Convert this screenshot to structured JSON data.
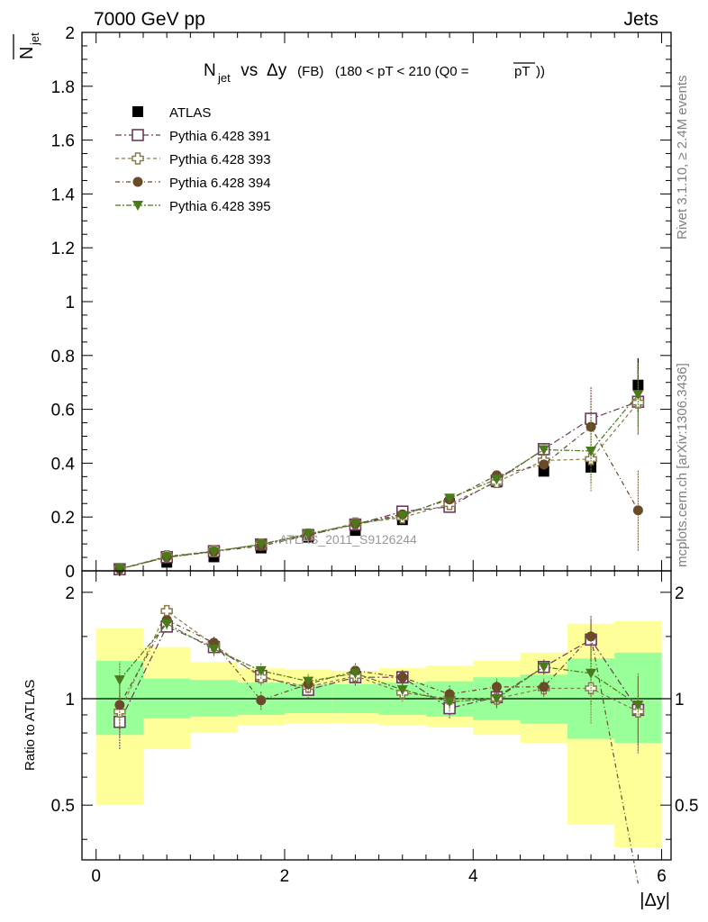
{
  "header": {
    "left": "7000 GeV pp",
    "right": "Jets"
  },
  "side_text": {
    "rivet": "Rivet 3.1.10, ≥ 2.4M events",
    "mcplots": "mcplots.cern.ch [arXiv:1306.3436]"
  },
  "watermark": "ATLAS_2011_S9126244",
  "chart_data": {
    "type": "scatter",
    "title": {
      "main": "N",
      "main_sub": "jet",
      "vs": " vs ",
      "delta": "Δy",
      "fb": " (FB) ",
      "range": "(180 < pT < 210 (Q0 =",
      "ptbar": "pT",
      "close": "))"
    },
    "ylabel": {
      "main": "N",
      "sub": "jet"
    },
    "xlabel": "|Δy|",
    "ratio_ylabel": "Ratio to ATLAS",
    "xlim": [
      -0.15,
      6.1
    ],
    "ylim": [
      0,
      2
    ],
    "ratio_ylim": [
      0.35,
      2.3
    ],
    "x_ticks": [
      "0",
      "2",
      "4",
      "6"
    ],
    "y_ticks": [
      "0",
      "0.2",
      "0.4",
      "0.6",
      "0.8",
      "1",
      "1.2",
      "1.4",
      "1.6",
      "1.8",
      "2"
    ],
    "ratio_ticks": [
      "0.5",
      "1",
      "2"
    ],
    "x": [
      0.25,
      0.75,
      1.25,
      1.75,
      2.25,
      2.75,
      3.25,
      3.75,
      4.25,
      4.75,
      5.25,
      5.75
    ],
    "x_bins": [
      0,
      0.5,
      1.0,
      1.5,
      2.0,
      2.5,
      3.0,
      3.5,
      4.0,
      4.5,
      5.0,
      5.5,
      6.0
    ],
    "atlas": {
      "name": "ATLAS",
      "values": [
        0.007,
        0.032,
        0.052,
        0.085,
        0.125,
        0.15,
        0.19,
        0.25,
        0.33,
        0.37,
        0.385,
        0.69
      ]
    },
    "band_green": [
      [
        0.79,
        1.28
      ],
      [
        0.88,
        1.14
      ],
      [
        0.89,
        1.13
      ],
      [
        0.9,
        1.11
      ],
      [
        0.91,
        1.1
      ],
      [
        0.91,
        1.1
      ],
      [
        0.9,
        1.11
      ],
      [
        0.89,
        1.12
      ],
      [
        0.87,
        1.15
      ],
      [
        0.85,
        1.17
      ],
      [
        0.77,
        1.3
      ],
      [
        0.75,
        1.35
      ]
    ],
    "band_yellow": [
      [
        0.5,
        1.58
      ],
      [
        0.72,
        1.4
      ],
      [
        0.8,
        1.27
      ],
      [
        0.84,
        1.22
      ],
      [
        0.85,
        1.21
      ],
      [
        0.85,
        1.2
      ],
      [
        0.84,
        1.22
      ],
      [
        0.83,
        1.24
      ],
      [
        0.79,
        1.28
      ],
      [
        0.75,
        1.35
      ],
      [
        0.44,
        1.63
      ],
      [
        0.38,
        1.66
      ]
    ],
    "series": [
      {
        "name": "Pythia 6.428 391",
        "color": "#6b3a5c",
        "marker": "open-square",
        "values": [
          0.006,
          0.051,
          0.073,
          0.098,
          0.133,
          0.172,
          0.22,
          0.238,
          0.335,
          0.452,
          0.565,
          0.628
        ],
        "ratio": [
          0.86,
          1.6,
          1.4,
          1.16,
          1.06,
          1.15,
          1.15,
          0.94,
          1.01,
          1.23,
          1.47,
          0.93
        ]
      },
      {
        "name": "Pythia 6.428 393",
        "color": "#8a7a4a",
        "marker": "open-cross",
        "values": [
          0.007,
          0.054,
          0.073,
          0.098,
          0.135,
          0.176,
          0.198,
          0.248,
          0.33,
          0.41,
          0.415,
          0.625
        ],
        "ratio": [
          0.92,
          1.77,
          1.42,
          1.15,
          1.08,
          1.16,
          1.04,
          1.0,
          1.0,
          1.07,
          1.07,
          0.92
        ]
      },
      {
        "name": "Pythia 6.428 394",
        "color": "#6b4a2a",
        "marker": "filled-circle",
        "values": [
          0.007,
          0.052,
          0.072,
          0.092,
          0.132,
          0.175,
          0.21,
          0.265,
          0.355,
          0.395,
          0.535,
          0.225
        ],
        "ratio": [
          0.96,
          1.67,
          1.44,
          0.99,
          1.1,
          1.2,
          1.15,
          1.03,
          1.08,
          1.08,
          1.5,
          0.3
        ]
      },
      {
        "name": "Pythia 6.428 395",
        "color": "#4a7a1a",
        "marker": "filled-triangle",
        "values": [
          0.008,
          0.05,
          0.071,
          0.099,
          0.138,
          0.172,
          0.205,
          0.27,
          0.34,
          0.45,
          0.445,
          0.655
        ],
        "ratio": [
          1.13,
          1.63,
          1.38,
          1.2,
          1.12,
          1.18,
          1.06,
          0.98,
          1.0,
          1.23,
          1.18,
          0.96
        ]
      }
    ]
  }
}
